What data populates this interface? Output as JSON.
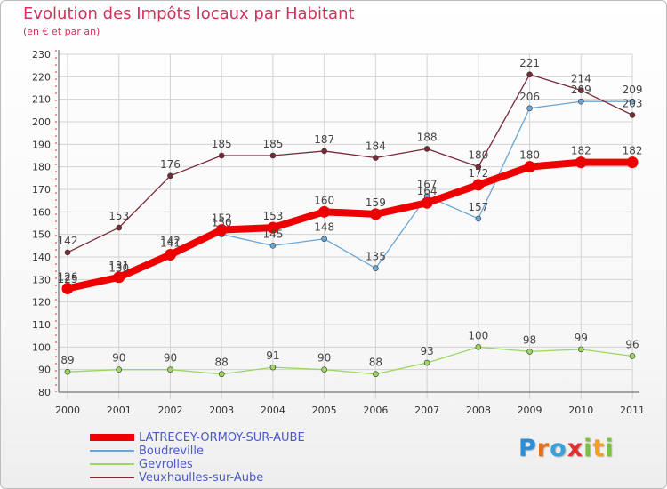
{
  "title": "Evolution des Impôts locaux par Habitant",
  "subtitle": "(en € et par an)",
  "logo": {
    "letters": [
      "P",
      "r",
      "o",
      "x",
      "i",
      "t",
      "i"
    ],
    "colors": [
      "#2a8fd6",
      "#e07020",
      "#3aa0d8",
      "#e03030",
      "#7bc23c",
      "#f0a020",
      "#7bc23c"
    ]
  },
  "chart_data": {
    "type": "line",
    "x": [
      "2000",
      "2001",
      "2002",
      "2003",
      "2004",
      "2005",
      "2006",
      "2007",
      "2008",
      "2009",
      "2010",
      "2011"
    ],
    "ylim": [
      80,
      230
    ],
    "yticks": [
      "80",
      "90",
      "100",
      "110",
      "120",
      "130",
      "140",
      "150",
      "160",
      "170",
      "180",
      "190",
      "200",
      "210",
      "220",
      "230"
    ],
    "grid": true,
    "series": [
      {
        "name": "LATRECEY-ORMOY-SUR-AUBE",
        "color": "#ee0000",
        "emphasis": true,
        "values": [
          126,
          131,
          141,
          152,
          153,
          160,
          159,
          164,
          172,
          180,
          182,
          182
        ]
      },
      {
        "name": "Boudreville",
        "color": "#6aa6d6",
        "emphasis": false,
        "values": [
          125,
          130,
          142,
          150,
          145,
          148,
          135,
          167,
          157,
          206,
          209,
          209
        ]
      },
      {
        "name": "Gevrolles",
        "color": "#9ad860",
        "emphasis": false,
        "values": [
          89,
          90,
          90,
          88,
          91,
          90,
          88,
          93,
          100,
          98,
          99,
          96
        ]
      },
      {
        "name": "Veuxhaulles-sur-Aube",
        "color": "#7a2a36",
        "emphasis": false,
        "values": [
          142,
          153,
          176,
          185,
          185,
          187,
          184,
          188,
          180,
          221,
          214,
          203
        ]
      }
    ]
  }
}
